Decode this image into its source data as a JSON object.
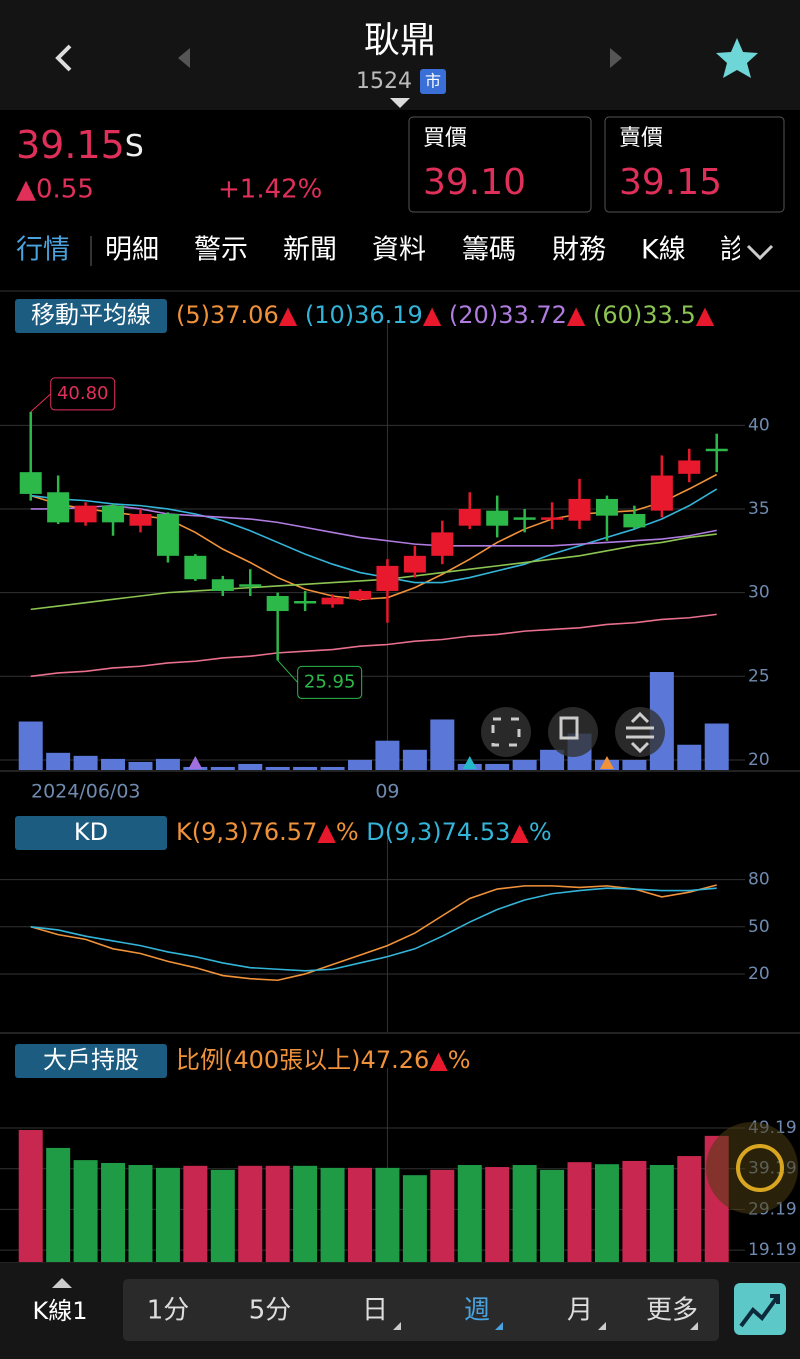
{
  "header": {
    "title": "耿鼎",
    "code": "1524",
    "market": "市"
  },
  "quote": {
    "price": "39.15",
    "suffix": "S",
    "change": "▲0.55",
    "percent": "+1.42%",
    "bid_label": "買價",
    "bid": "39.10",
    "ask_label": "賣價",
    "ask": "39.15"
  },
  "tabs": [
    "行情",
    "明細",
    "警示",
    "新聞",
    "資料",
    "籌碼",
    "財務",
    "K線",
    "診"
  ],
  "bottom": {
    "mode": "K線1",
    "periods": [
      "1分",
      "5分",
      "日",
      "週",
      "月",
      "更多"
    ],
    "active": "週"
  },
  "chart_data": [
    {
      "type": "candlestick",
      "label": "移動平均線",
      "categories": [
        "2024/06/03",
        null,
        null,
        null,
        null,
        null,
        null,
        null,
        null,
        null,
        null,
        null,
        null,
        "09",
        null,
        null,
        null,
        null,
        null,
        null,
        null,
        null,
        null,
        null,
        null,
        null
      ],
      "open": [
        37.2,
        36.0,
        34.2,
        35.2,
        34.0,
        34.7,
        32.2,
        30.8,
        30.5,
        29.8,
        29.5,
        29.3,
        29.6,
        30.1,
        31.2,
        32.2,
        34.0,
        34.9,
        34.5,
        34.4,
        34.3,
        35.6,
        34.7,
        34.9,
        37.1,
        38.6
      ],
      "high": [
        40.8,
        37.0,
        35.4,
        35.3,
        35.0,
        34.8,
        32.3,
        31.0,
        31.4,
        30.0,
        30.1,
        29.9,
        30.2,
        32.0,
        32.8,
        34.3,
        36.0,
        35.8,
        35.0,
        35.4,
        36.8,
        35.8,
        35.2,
        38.2,
        38.6,
        39.5
      ],
      "low": [
        35.5,
        34.1,
        34.0,
        33.4,
        33.6,
        31.8,
        30.7,
        29.8,
        29.8,
        25.95,
        28.9,
        29.1,
        29.5,
        28.2,
        30.9,
        31.7,
        33.8,
        33.3,
        33.6,
        33.8,
        33.8,
        33.1,
        33.8,
        34.5,
        36.6,
        37.2
      ],
      "close": [
        35.9,
        34.2,
        35.2,
        34.2,
        34.7,
        32.2,
        30.8,
        30.1,
        30.4,
        28.9,
        29.4,
        29.7,
        30.1,
        31.6,
        32.2,
        33.6,
        35.0,
        34.0,
        34.4,
        34.5,
        35.6,
        34.6,
        33.9,
        37.0,
        37.9,
        38.5
      ],
      "up_color": "#e8192c",
      "down_color": "#2db84a",
      "volume": [
        48,
        17,
        14,
        11,
        8,
        11,
        3,
        3,
        6,
        3,
        3,
        3,
        10,
        29,
        20,
        50,
        6,
        6,
        10,
        20,
        36,
        10,
        10,
        97,
        25,
        46
      ],
      "volume_color": "#5b78d8",
      "series": [
        {
          "name": "(5)",
          "trend": "▲",
          "color": "#f0923a",
          "values": [
            35.8,
            35.3,
            35.0,
            34.8,
            34.6,
            34.4,
            33.6,
            32.6,
            31.8,
            30.9,
            30.2,
            29.8,
            29.6,
            29.7,
            30.3,
            31.1,
            32.0,
            33.0,
            33.8,
            34.4,
            34.7,
            34.8,
            34.9,
            35.4,
            36.2,
            37.06
          ]
        },
        {
          "name": "(10)",
          "trend": "▲",
          "color": "#34b4d8",
          "values": [
            35.8,
            35.6,
            35.5,
            35.3,
            35.2,
            35.0,
            34.7,
            34.3,
            33.7,
            33.0,
            32.3,
            31.7,
            31.2,
            30.9,
            30.6,
            30.6,
            30.9,
            31.3,
            31.7,
            32.3,
            32.8,
            33.3,
            33.8,
            34.4,
            35.2,
            36.19
          ]
        },
        {
          "name": "(20)",
          "trend": "▲",
          "color": "#b07ce0",
          "values": [
            35.0,
            35.0,
            35.1,
            35.2,
            35.0,
            34.7,
            34.6,
            34.5,
            34.4,
            34.2,
            33.9,
            33.6,
            33.3,
            33.1,
            32.9,
            32.8,
            32.8,
            32.8,
            32.8,
            32.8,
            32.9,
            33.0,
            33.1,
            33.2,
            33.4,
            33.72
          ]
        },
        {
          "name": "(60)",
          "trend": "▲",
          "color": "#8cc452",
          "values": [
            29.0,
            29.2,
            29.4,
            29.6,
            29.8,
            30.0,
            30.1,
            30.2,
            30.3,
            30.4,
            30.5,
            30.6,
            30.7,
            30.8,
            31.0,
            31.2,
            31.4,
            31.6,
            31.8,
            32.0,
            32.2,
            32.5,
            32.8,
            33.0,
            33.3,
            33.5
          ]
        },
        {
          "color": "#e8708e",
          "values": [
            25.0,
            25.2,
            25.3,
            25.5,
            25.6,
            25.8,
            25.9,
            26.1,
            26.2,
            26.4,
            26.5,
            26.6,
            26.8,
            26.9,
            27.1,
            27.2,
            27.4,
            27.5,
            27.7,
            27.8,
            27.9,
            28.1,
            28.2,
            28.4,
            28.5,
            28.7
          ]
        }
      ],
      "annotations": [
        {
          "value": 40.8,
          "label": "40.80",
          "color": "#e0305a"
        },
        {
          "value": 25.95,
          "label": "25.95",
          "color": "#2db84a"
        }
      ],
      "ylim": [
        19.4,
        44.8
      ],
      "yticks": [
        40,
        35,
        30,
        25,
        20
      ]
    },
    {
      "type": "line",
      "label": "KD",
      "unit": "%",
      "series": [
        {
          "name": "K(9,3)",
          "trend": "▲",
          "color": "#f0923a",
          "values": [
            50,
            45,
            42,
            36,
            33,
            28,
            24,
            19,
            17,
            16,
            20,
            26,
            32,
            38,
            46,
            57,
            68,
            74,
            76,
            76,
            75,
            76,
            74,
            69,
            72,
            76.57
          ]
        },
        {
          "name": "D(9,3)",
          "trend": "▲",
          "color": "#34b4d8",
          "values": [
            50,
            48,
            44,
            41,
            38,
            34,
            31,
            27,
            24,
            23,
            22,
            23,
            27,
            31,
            36,
            44,
            53,
            61,
            67,
            71,
            73,
            74.5,
            74,
            73,
            73,
            74.53
          ]
        }
      ],
      "ylim": [
        -16.9,
        92.45
      ],
      "yticks": [
        80,
        50,
        20
      ]
    },
    {
      "type": "bar",
      "label": "大戶持股",
      "unit": "%",
      "series": [
        {
          "name": "比例(400張以上)",
          "trend": "▲",
          "color": "#f0923a",
          "values": [
            48.7,
            44.3,
            41.3,
            40.6,
            40.1,
            39.4,
            39.9,
            38.9,
            39.9,
            39.9,
            39.9,
            39.4,
            39.4,
            39.4,
            37.6,
            38.9,
            40.1,
            39.6,
            40.1,
            38.9,
            40.8,
            40.3,
            41.1,
            40.1,
            42.3,
            47.26
          ],
          "bar_colors": [
            "#c8284f",
            "#1f9a45",
            "#1f9a45",
            "#1f9a45",
            "#1f9a45",
            "#1f9a45",
            "#c8284f",
            "#1f9a45",
            "#c8284f",
            "#c8284f",
            "#1f9a45",
            "#1f9a45",
            "#c8284f",
            "#1f9a45",
            "#1f9a45",
            "#c8284f",
            "#1f9a45",
            "#c8284f",
            "#1f9a45",
            "#1f9a45",
            "#c8284f",
            "#1f9a45",
            "#c8284f",
            "#1f9a45",
            "#c8284f",
            "#c8284f"
          ]
        }
      ],
      "ylim": [
        16.27,
        58.53
      ],
      "yticks": [
        49.19,
        39.19,
        29.19,
        19.19
      ]
    }
  ]
}
